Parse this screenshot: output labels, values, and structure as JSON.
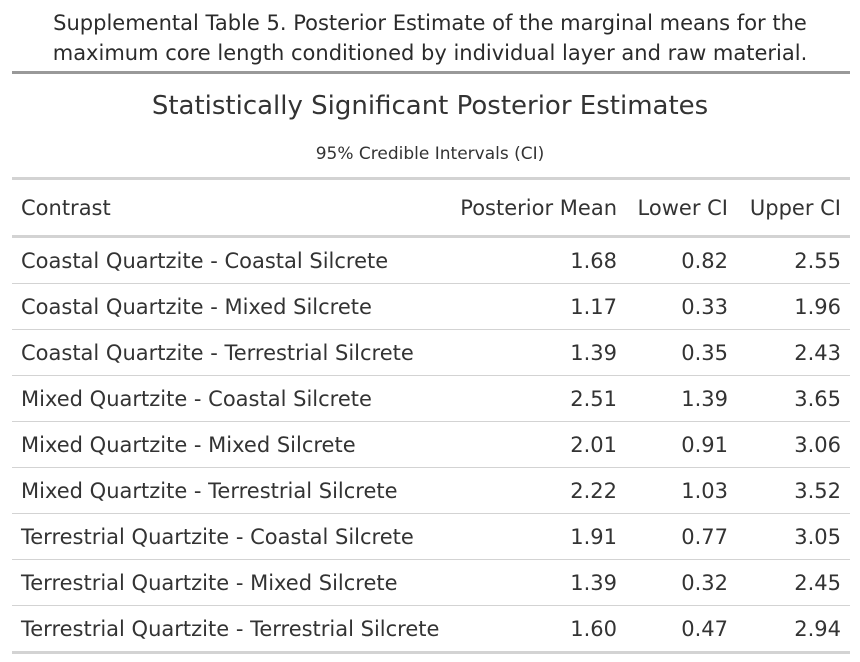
{
  "caption": {
    "line1": "Supplemental Table 5. Posterior Estimate of the marginal means for the",
    "line2": "maximum core length conditioned by individual layer and raw material."
  },
  "table": {
    "title": "Statistically Significant Posterior Estimates",
    "subtitle": "95% Credible Intervals (CI)",
    "columns": [
      "Contrast",
      "Posterior Mean",
      "Lower CI",
      "Upper CI"
    ],
    "rows": [
      [
        "Coastal Quartzite - Coastal Silcrete",
        "1.68",
        "0.82",
        "2.55"
      ],
      [
        "Coastal Quartzite - Mixed Silcrete",
        "1.17",
        "0.33",
        "1.96"
      ],
      [
        "Coastal Quartzite - Terrestrial Silcrete",
        "1.39",
        "0.35",
        "2.43"
      ],
      [
        "Mixed Quartzite - Coastal Silcrete",
        "2.51",
        "1.39",
        "3.65"
      ],
      [
        "Mixed Quartzite - Mixed Silcrete",
        "2.01",
        "0.91",
        "3.06"
      ],
      [
        "Mixed Quartzite - Terrestrial Silcrete",
        "2.22",
        "1.03",
        "3.52"
      ],
      [
        "Terrestrial Quartzite - Coastal Silcrete",
        "1.91",
        "0.77",
        "3.05"
      ],
      [
        "Terrestrial Quartzite - Mixed Silcrete",
        "1.39",
        "0.32",
        "2.45"
      ],
      [
        "Terrestrial Quartzite - Terrestrial Silcrete",
        "1.60",
        "0.47",
        "2.94"
      ]
    ]
  }
}
